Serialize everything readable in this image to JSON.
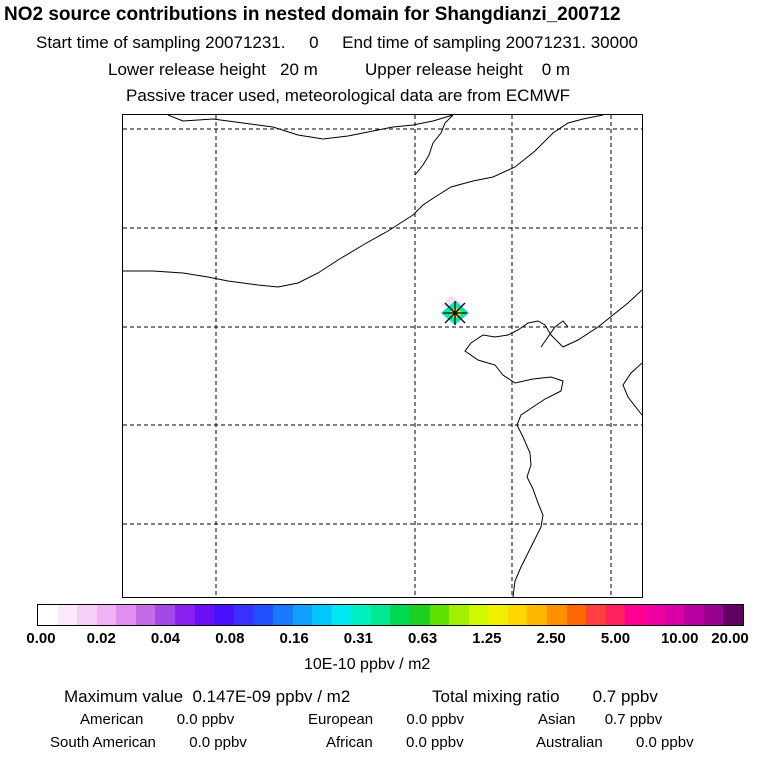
{
  "header": {
    "title": "NO2 source contributions in nested domain for Shangdianzi_200712",
    "sampling": "Start time of sampling 20071231.     0     End time of sampling 20071231. 30000",
    "release": "Lower release height   20 m          Upper release height    0 m",
    "tracer": "Passive tracer used, meteorological data are from ECMWF"
  },
  "map": {
    "station_name": "Shangdianzi",
    "coastline_color": "#000000",
    "gridline_style": "dashed"
  },
  "colorbar": {
    "units": "10E-10 ppbv / m2",
    "tick_labels": [
      "0.00",
      "0.02",
      "0.04",
      "0.08",
      "0.16",
      "0.31",
      "0.63",
      "1.25",
      "2.50",
      "5.00",
      "10.00",
      "20.00"
    ],
    "colors": [
      "#ffffff",
      "#fbe8fb",
      "#f5d0f7",
      "#eeb2f5",
      "#e08ef0",
      "#c46be8",
      "#a24ae6",
      "#8a20f0",
      "#6a10f5",
      "#4a10ff",
      "#3a30ff",
      "#2050ff",
      "#1878ff",
      "#10a0ff",
      "#00c8ff",
      "#00e8f0",
      "#00f0c0",
      "#00e890",
      "#00d850",
      "#20d020",
      "#60e000",
      "#a0f000",
      "#d0f800",
      "#f0f000",
      "#ffd800",
      "#ffb800",
      "#ff9000",
      "#ff6800",
      "#ff4040",
      "#ff2060",
      "#ff0090",
      "#f000a0",
      "#d800a8",
      "#b800a0",
      "#980090",
      "#600060"
    ]
  },
  "stats": {
    "maximum": "Maximum value  0.147E-09 ppbv / m2",
    "total": "Total mixing ratio       0.7 ppbv",
    "american": "American        0.0 ppbv",
    "european": "European        0.0 ppbv",
    "asian": "Asian       0.7 ppbv",
    "south_american": "South American        0.0 ppbv",
    "african": "African        0.0 ppbv",
    "australian": "Australian        0.0 ppbv"
  }
}
